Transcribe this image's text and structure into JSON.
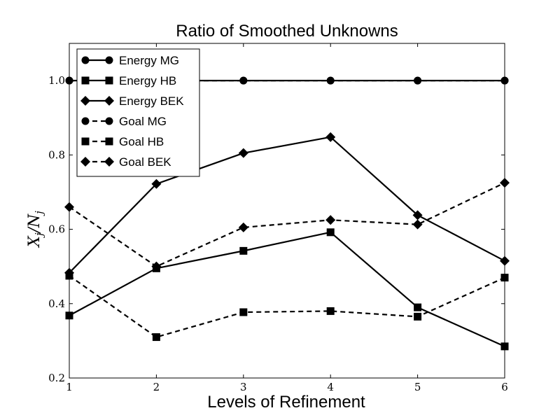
{
  "chart_data": {
    "type": "line",
    "title": "Ratio of Smoothed Unknowns",
    "xlabel": "Levels of Refinement",
    "ylabel": "X_j/N_j",
    "x": [
      1,
      2,
      3,
      4,
      5,
      6
    ],
    "xlim": [
      1,
      6
    ],
    "ylim": [
      0.2,
      1.1
    ],
    "xticks": [
      "1",
      "2",
      "3",
      "4",
      "5",
      "6"
    ],
    "yticks": [
      {
        "value": 0.2,
        "label": "0.2"
      },
      {
        "value": 0.4,
        "label": "0.4"
      },
      {
        "value": 0.6,
        "label": "0.6"
      },
      {
        "value": 0.8,
        "label": "0.8"
      },
      {
        "value": 1.0,
        "label": "1.0"
      }
    ],
    "grid": false,
    "legend_position": "top-left",
    "series": [
      {
        "name": "Energy MG",
        "marker": "circle",
        "linestyle": "solid",
        "color": "#000000",
        "values": [
          1.0,
          1.0,
          1.0,
          1.0,
          1.0,
          1.0
        ]
      },
      {
        "name": "Energy HB",
        "marker": "square",
        "linestyle": "solid",
        "color": "#000000",
        "values": [
          0.368,
          0.495,
          0.542,
          0.592,
          0.39,
          0.285
        ]
      },
      {
        "name": "Energy BEK",
        "marker": "diamond",
        "linestyle": "solid",
        "color": "#000000",
        "values": [
          0.483,
          0.722,
          0.805,
          0.848,
          0.638,
          0.515
        ]
      },
      {
        "name": "Goal MG",
        "marker": "circle",
        "linestyle": "dashed",
        "color": "#000000",
        "values": [
          1.0,
          1.0,
          1.0,
          1.0,
          1.0,
          1.0
        ]
      },
      {
        "name": "Goal HB",
        "marker": "square",
        "linestyle": "dashed",
        "color": "#000000",
        "values": [
          0.475,
          0.31,
          0.377,
          0.38,
          0.365,
          0.47
        ]
      },
      {
        "name": "Goal BEK",
        "marker": "diamond",
        "linestyle": "dashed",
        "color": "#000000",
        "values": [
          0.66,
          0.5,
          0.605,
          0.625,
          0.613,
          0.725
        ]
      }
    ]
  }
}
